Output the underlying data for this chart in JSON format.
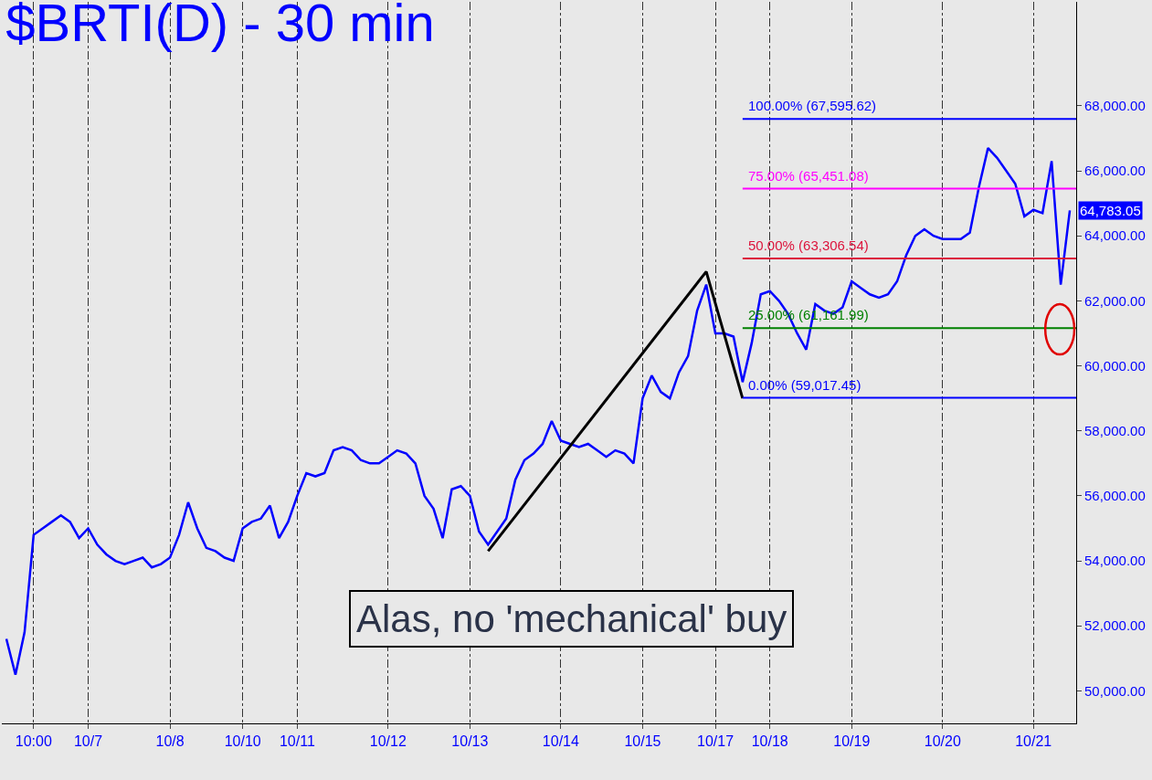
{
  "chart_data": {
    "type": "line",
    "title": "$BRTI(D) - 30 min",
    "categories": [
      null,
      null,
      null,
      "10:00",
      null,
      null,
      null,
      null,
      null,
      "10/7",
      null,
      null,
      null,
      null,
      null,
      null,
      null,
      null,
      "10/8",
      null,
      null,
      null,
      null,
      null,
      null,
      null,
      "10/10",
      null,
      null,
      null,
      null,
      null,
      "10/11",
      null,
      null,
      null,
      null,
      null,
      null,
      null,
      null,
      null,
      "10/12",
      null,
      null,
      null,
      null,
      null,
      null,
      null,
      null,
      "10/13",
      null,
      null,
      null,
      null,
      null,
      null,
      null,
      null,
      null,
      "10/14",
      null,
      null,
      null,
      null,
      null,
      null,
      null,
      null,
      "10/15",
      null,
      null,
      null,
      null,
      null,
      null,
      null,
      "10/17",
      null,
      null,
      null,
      null,
      null,
      "10/18",
      null,
      null,
      null,
      null,
      null,
      null,
      null,
      null,
      "10/19",
      null,
      null,
      null,
      null,
      null,
      null,
      null,
      null,
      null,
      "10/20",
      null,
      null,
      null,
      null,
      null,
      null,
      null,
      null,
      null,
      "10/21",
      null,
      null,
      null,
      null
    ],
    "series": [
      {
        "color": "#0000ff",
        "values": [
          51600,
          50500,
          51800,
          54800,
          55000,
          55200,
          55400,
          55200,
          54700,
          55000,
          54500,
          54200,
          54000,
          53900,
          54000,
          54100,
          53800,
          53900,
          54100,
          54800,
          55800,
          55000,
          54400,
          54300,
          54100,
          54000,
          55000,
          55200,
          55300,
          55700,
          54700,
          55200,
          56000,
          56700,
          56600,
          56700,
          57400,
          57500,
          57400,
          57100,
          57000,
          57000,
          57200,
          57400,
          57300,
          57000,
          56000,
          55600,
          54700,
          56200,
          56300,
          56000,
          54900,
          54500,
          54900,
          55300,
          56500,
          57100,
          57300,
          57600,
          58300,
          57700,
          57600,
          57500,
          57600,
          57400,
          57200,
          57400,
          57300,
          57000,
          59000,
          59700,
          59200,
          59000,
          59800,
          60300,
          61700,
          62500,
          61000,
          61000,
          60900,
          59500,
          60700,
          62200,
          62300,
          62000,
          61600,
          61000,
          60500,
          61900,
          61700,
          61600,
          61800,
          62600,
          62400,
          62200,
          62100,
          62200,
          62600,
          63400,
          64000,
          64200,
          64000,
          63900,
          63900,
          63900,
          64100,
          65500,
          66700,
          66400,
          66000,
          65600,
          64600,
          64800,
          64700,
          66300,
          62500,
          64780
        ]
      },
      {
        "type": "line",
        "color": "#000000",
        "values": [
          null,
          null,
          null,
          null,
          null,
          null,
          null,
          null,
          null,
          null,
          null,
          null,
          null,
          null,
          null,
          null,
          null,
          null,
          null,
          null,
          null,
          null,
          null,
          null,
          null,
          null,
          null,
          null,
          null,
          null,
          null,
          null,
          null,
          null,
          null,
          null,
          null,
          null,
          null,
          null,
          null,
          null,
          null,
          null,
          null,
          null,
          null,
          null,
          null,
          null,
          null,
          null,
          null,
          54300,
          null,
          null,
          null,
          null,
          null,
          null,
          null,
          null,
          null,
          null,
          null,
          null,
          null,
          null,
          null,
          null,
          null,
          null,
          null,
          null,
          null,
          null,
          null,
          62900,
          null,
          null,
          null,
          59000,
          null,
          null,
          null,
          null,
          null,
          null,
          null,
          null,
          null,
          null,
          null,
          null,
          null,
          null,
          null,
          null,
          null,
          null,
          null,
          null,
          null,
          null,
          null,
          null,
          null,
          null,
          null,
          null,
          null,
          null,
          null,
          null,
          null,
          null,
          null,
          null
        ]
      }
    ],
    "ylim": [
      49000,
      71200
    ],
    "yticks": [
      {
        "value": 50000,
        "label": "50,000.00"
      },
      {
        "value": 52000,
        "label": "52,000.00"
      },
      {
        "value": 54000,
        "label": "54,000.00"
      },
      {
        "value": 56000,
        "label": "56,000.00"
      },
      {
        "value": 58000,
        "label": "58,000.00"
      },
      {
        "value": 60000,
        "label": "60,000.00"
      },
      {
        "value": 62000,
        "label": "62,000.00"
      },
      {
        "value": 64000,
        "label": "64,000.00"
      },
      {
        "value": 66000,
        "label": "66,000.00"
      },
      {
        "value": 68000,
        "label": "68,000.00"
      }
    ],
    "ref_lines": [
      {
        "axis": "y",
        "value": 67595.62,
        "label": "100.00% (67,595.62)",
        "color": "#0000ff"
      },
      {
        "axis": "y",
        "value": 65451.08,
        "label": "75.00% (65,451.08)",
        "color": "#ff00ff"
      },
      {
        "axis": "y",
        "value": 63306.54,
        "label": "50.00% (63,306.54)",
        "color": "#dc143c"
      },
      {
        "axis": "y",
        "value": 61161.99,
        "label": "25.00% (61,161.99)",
        "color": "#008000"
      },
      {
        "axis": "y",
        "value": 59017.45,
        "label": "0.00% (59,017.45)",
        "color": "#0000ff"
      }
    ],
    "annotations": [
      "64,783.05",
      "Alas, no 'mechanical' buy"
    ],
    "grid": "x",
    "line_style": "solid",
    "marker": "none"
  }
}
